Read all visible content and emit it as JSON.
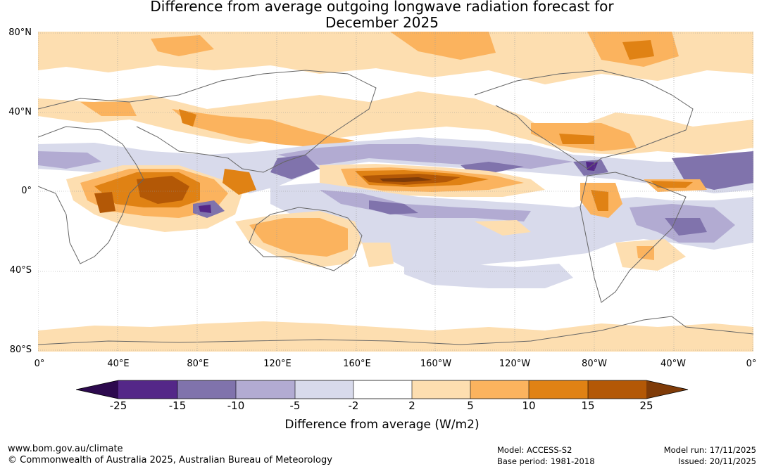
{
  "title": {
    "line1": "Difference from average outgoing longwave radiation forecast for",
    "line2": "December 2025"
  },
  "map": {
    "lat_labels": [
      "80°N",
      "40°N",
      "0°",
      "40°S",
      "80°S"
    ],
    "lon_labels": [
      "0°",
      "40°E",
      "80°E",
      "120°E",
      "160°E",
      "160°W",
      "120°W",
      "80°W",
      "40°W",
      "0°"
    ],
    "colors": {
      "lt-25": "#2d0a4e",
      "-25_-15": "#542788",
      "-15_-10": "#8073ac",
      "-10_-5": "#b2abd2",
      "-5_-2": "#d8daeb",
      "-2_2": "#ffffff",
      "2_5": "#fddeb0",
      "5_10": "#fbb35e",
      "10_15": "#e08214",
      "15_25": "#b35806",
      "gt25": "#7f3b08",
      "coast": "#666666"
    }
  },
  "colorbar": {
    "ticks": [
      "-25",
      "-15",
      "-10",
      "-5",
      "-2",
      "2",
      "5",
      "10",
      "15",
      "25"
    ],
    "title": "Difference from average (W/m2)"
  },
  "footer": {
    "website": "www.bom.gov.au/climate",
    "copyright": "© Commonwealth of Australia 2025, Australian Bureau of Meteorology",
    "model": "Model: ACCESS-S2",
    "base_period": "Base period: 1981-2018",
    "model_run": "Model run: 17/11/2025",
    "issued": "Issued: 20/11/2025"
  }
}
